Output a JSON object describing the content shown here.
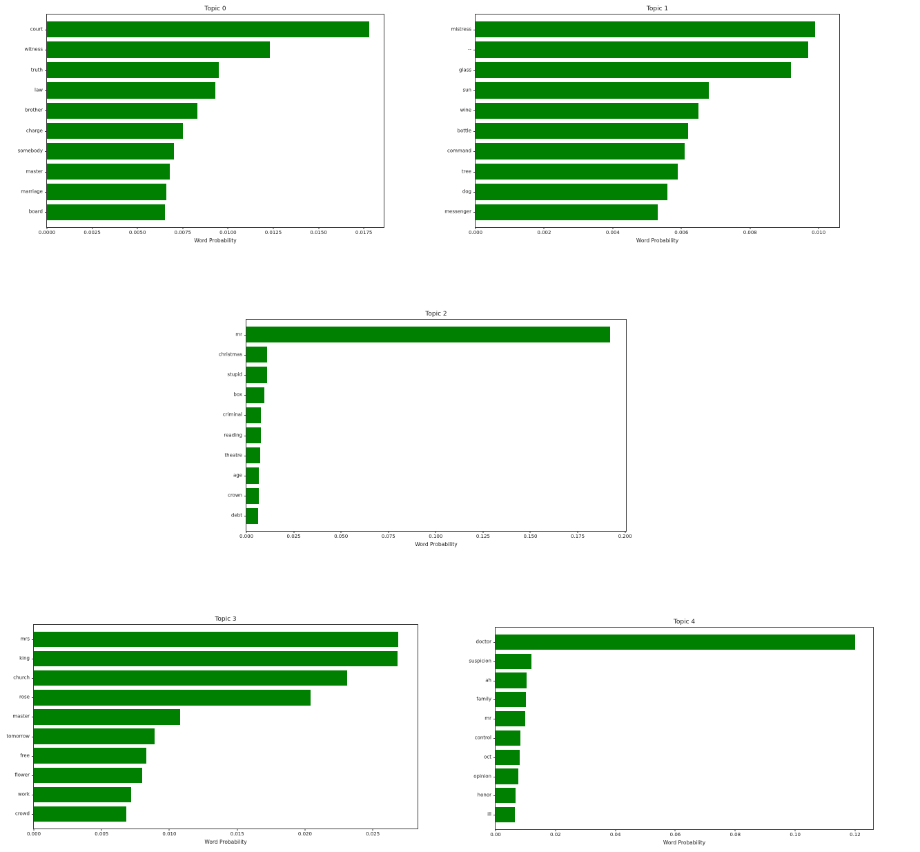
{
  "page": {
    "background_color": "#ffffff",
    "bar_color": "#008000",
    "description": "Five horizontal bar charts of topic-model word probabilities (Topic 0 - Topic 4)"
  },
  "chart_data": [
    {
      "type": "bar",
      "orientation": "horizontal",
      "title": "Topic 0",
      "xlabel": "Word Probability",
      "bar_color": "#008000",
      "grid": false,
      "legend": null,
      "xlim": [
        0,
        0.0186
      ],
      "ticks": [
        0.0,
        0.0025,
        0.005,
        0.0075,
        0.01,
        0.0125,
        0.015,
        0.0175
      ],
      "tick_labels": [
        "0.0000",
        "0.0025",
        "0.0050",
        "0.0075",
        "0.0100",
        "0.0125",
        "0.0150",
        "0.0175"
      ],
      "categories": [
        "court",
        "witness",
        "truth",
        "law",
        "brother",
        "charge",
        "somebody",
        "master",
        "marriage",
        "board"
      ],
      "values": [
        0.0178,
        0.0123,
        0.0095,
        0.0093,
        0.0083,
        0.0075,
        0.007,
        0.0068,
        0.0066,
        0.0065
      ]
    },
    {
      "type": "bar",
      "orientation": "horizontal",
      "title": "Topic 1",
      "xlabel": "Word Probability",
      "bar_color": "#008000",
      "grid": false,
      "legend": null,
      "xlim": [
        0,
        0.0106
      ],
      "ticks": [
        0.0,
        0.002,
        0.004,
        0.006,
        0.008,
        0.01
      ],
      "tick_labels": [
        "0.000",
        "0.002",
        "0.004",
        "0.006",
        "0.008",
        "0.010"
      ],
      "categories": [
        "mistress",
        "--",
        "glass",
        "sun",
        "wine",
        "bottle",
        "command",
        "tree",
        "dog",
        "messenger"
      ],
      "values": [
        0.0099,
        0.0097,
        0.0092,
        0.0068,
        0.0065,
        0.0062,
        0.0061,
        0.0059,
        0.0056,
        0.0053
      ]
    },
    {
      "type": "bar",
      "orientation": "horizontal",
      "title": "Topic 2",
      "xlabel": "Word Probability",
      "bar_color": "#008000",
      "grid": false,
      "legend": null,
      "xlim": [
        0,
        0.2005
      ],
      "ticks": [
        0.0,
        0.025,
        0.05,
        0.075,
        0.1,
        0.125,
        0.15,
        0.175,
        0.2
      ],
      "tick_labels": [
        "0.000",
        "0.025",
        "0.050",
        "0.075",
        "0.100",
        "0.125",
        "0.150",
        "0.175",
        "0.200"
      ],
      "categories": [
        "mr",
        "christmas",
        "stupid",
        "box",
        "criminal",
        "reading",
        "theatre",
        "age",
        "crown",
        "debt"
      ],
      "values": [
        0.192,
        0.0111,
        0.0108,
        0.0095,
        0.0076,
        0.0075,
        0.0072,
        0.0066,
        0.0066,
        0.0062
      ]
    },
    {
      "type": "bar",
      "orientation": "horizontal",
      "title": "Topic 3",
      "xlabel": "Word Probability",
      "bar_color": "#008000",
      "grid": false,
      "legend": null,
      "xlim": [
        0,
        0.0283
      ],
      "ticks": [
        0.0,
        0.005,
        0.01,
        0.015,
        0.02,
        0.025
      ],
      "tick_labels": [
        "0.000",
        "0.005",
        "0.010",
        "0.015",
        "0.020",
        "0.025"
      ],
      "categories": [
        "mrs",
        "king",
        "church",
        "rose",
        "master",
        "tomorrow",
        "free",
        "flower",
        "work",
        "crowd"
      ],
      "values": [
        0.0269,
        0.0268,
        0.0231,
        0.0204,
        0.0108,
        0.0089,
        0.0083,
        0.008,
        0.0072,
        0.0068
      ]
    },
    {
      "type": "bar",
      "orientation": "horizontal",
      "title": "Topic 4",
      "xlabel": "Word Probability",
      "bar_color": "#008000",
      "grid": false,
      "legend": null,
      "xlim": [
        0,
        0.126
      ],
      "ticks": [
        0.0,
        0.02,
        0.04,
        0.06,
        0.08,
        0.1,
        0.12
      ],
      "tick_labels": [
        "0.00",
        "0.02",
        "0.04",
        "0.06",
        "0.08",
        "0.10",
        "0.12"
      ],
      "categories": [
        "doctor",
        "suspicion",
        "ah",
        "family",
        "mr",
        "control",
        "oct",
        "opinion",
        "honor",
        "ill"
      ],
      "values": [
        0.12,
        0.0119,
        0.0103,
        0.0101,
        0.0099,
        0.0084,
        0.0081,
        0.0076,
        0.0067,
        0.0065
      ]
    }
  ]
}
